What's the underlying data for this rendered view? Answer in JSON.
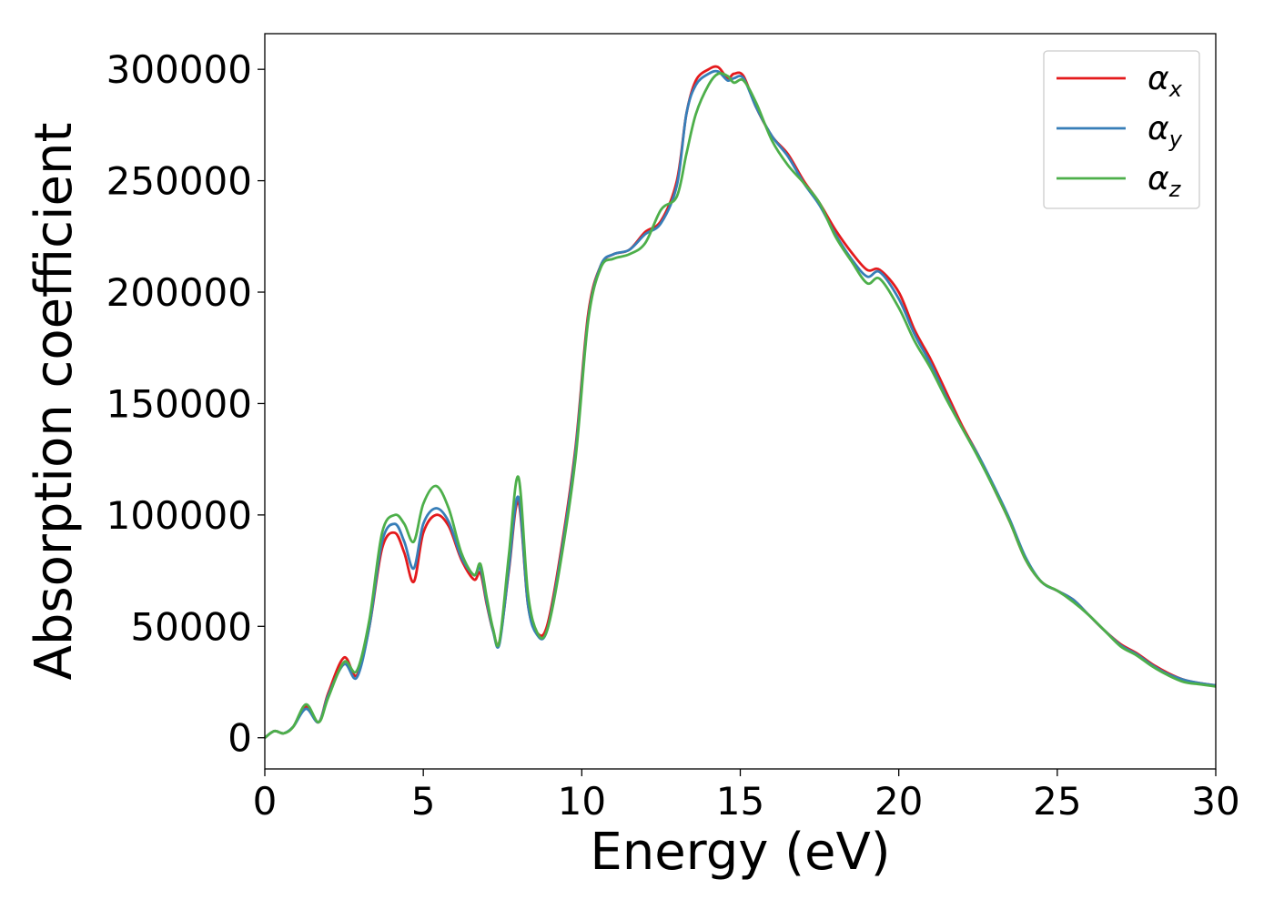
{
  "chart_data": {
    "type": "line",
    "xlabel": "Energy (eV)",
    "ylabel": "Absorption coefficient",
    "xlim": [
      0,
      30
    ],
    "ylim": [
      -14000,
      316000
    ],
    "xticks": [
      0,
      5,
      10,
      15,
      20,
      25,
      30
    ],
    "yticks": [
      0,
      50000,
      100000,
      150000,
      200000,
      250000,
      300000
    ],
    "grid": false,
    "legend_position": "top-right",
    "series": [
      {
        "name": "α_x",
        "label_base": "α",
        "label_sub": "x",
        "color": "#e41a1c",
        "x": [
          0,
          0.3,
          0.6,
          0.9,
          1.3,
          1.7,
          2.0,
          2.5,
          2.9,
          3.3,
          3.7,
          4.1,
          4.4,
          4.7,
          5.0,
          5.4,
          5.8,
          6.2,
          6.6,
          6.8,
          7.0,
          7.2,
          7.4,
          7.7,
          8.0,
          8.3,
          8.6,
          8.9,
          9.3,
          9.8,
          10.2,
          10.6,
          11.0,
          11.5,
          12.0,
          12.5,
          13.0,
          13.3,
          13.6,
          14.0,
          14.3,
          14.6,
          14.8,
          15.1,
          15.5,
          16.0,
          16.5,
          17.0,
          17.5,
          18.0,
          18.5,
          19.0,
          19.4,
          20.0,
          20.5,
          21.0,
          21.5,
          22.0,
          22.5,
          23.0,
          23.5,
          24.0,
          24.5,
          25.0,
          25.5,
          26.0,
          26.5,
          27.0,
          27.5,
          28.0,
          28.5,
          29.0,
          29.5,
          30.0
        ],
        "y": [
          0,
          3000,
          2000,
          5000,
          14000,
          7000,
          20000,
          36000,
          28000,
          50000,
          85000,
          92000,
          83000,
          70000,
          92000,
          100000,
          95000,
          80000,
          71000,
          74000,
          60000,
          48000,
          43000,
          75000,
          106000,
          60000,
          47000,
          50000,
          80000,
          130000,
          190000,
          212000,
          217000,
          219000,
          227000,
          232000,
          250000,
          280000,
          295000,
          300000,
          301000,
          296000,
          298000,
          297000,
          283000,
          270000,
          262000,
          250000,
          240000,
          228000,
          218000,
          210000,
          210000,
          200000,
          183000,
          170000,
          155000,
          140000,
          127000,
          112000,
          97000,
          80000,
          70000,
          66000,
          62000,
          55000,
          48000,
          42000,
          38000,
          33000,
          29000,
          26000,
          24500,
          23500
        ]
      },
      {
        "name": "α_y",
        "label_base": "α",
        "label_sub": "y",
        "color": "#377eb8",
        "x": [
          0,
          0.3,
          0.6,
          0.9,
          1.3,
          1.7,
          2.0,
          2.5,
          2.9,
          3.3,
          3.7,
          4.1,
          4.4,
          4.7,
          5.0,
          5.4,
          5.8,
          6.2,
          6.6,
          6.8,
          7.0,
          7.2,
          7.4,
          7.7,
          8.0,
          8.3,
          8.6,
          8.9,
          9.3,
          9.8,
          10.2,
          10.6,
          11.0,
          11.5,
          12.0,
          12.5,
          13.0,
          13.3,
          13.6,
          14.0,
          14.3,
          14.6,
          14.8,
          15.1,
          15.5,
          16.0,
          16.5,
          17.0,
          17.5,
          18.0,
          18.5,
          19.0,
          19.4,
          20.0,
          20.5,
          21.0,
          21.5,
          22.0,
          22.5,
          23.0,
          23.5,
          24.0,
          24.5,
          25.0,
          25.5,
          26.0,
          26.5,
          27.0,
          27.5,
          28.0,
          28.5,
          29.0,
          29.5,
          30.0
        ],
        "y": [
          0,
          3000,
          2000,
          5000,
          13000,
          7000,
          19000,
          33000,
          27000,
          50000,
          88000,
          96000,
          88000,
          76000,
          96000,
          103000,
          97000,
          81000,
          73000,
          76000,
          61000,
          48000,
          42000,
          76000,
          108000,
          60000,
          46000,
          48000,
          78000,
          128000,
          188000,
          212000,
          217000,
          219000,
          226000,
          231000,
          248000,
          280000,
          293000,
          298000,
          299000,
          295000,
          296000,
          296000,
          283000,
          270000,
          261000,
          249000,
          239000,
          226000,
          215000,
          207000,
          209000,
          197000,
          181000,
          168000,
          153000,
          139000,
          127000,
          113000,
          98000,
          81000,
          70000,
          66000,
          62000,
          55000,
          48000,
          41500,
          37500,
          32500,
          28500,
          26000,
          24500,
          23500
        ]
      },
      {
        "name": "α_z",
        "label_base": "α",
        "label_sub": "z",
        "color": "#4daf4a",
        "x": [
          0,
          0.3,
          0.6,
          0.9,
          1.3,
          1.7,
          2.0,
          2.5,
          2.9,
          3.3,
          3.7,
          4.1,
          4.4,
          4.7,
          5.0,
          5.4,
          5.8,
          6.2,
          6.6,
          6.8,
          7.0,
          7.2,
          7.4,
          7.7,
          8.0,
          8.3,
          8.6,
          8.9,
          9.3,
          9.8,
          10.2,
          10.6,
          11.0,
          11.5,
          12.0,
          12.5,
          13.0,
          13.3,
          13.6,
          14.0,
          14.3,
          14.6,
          14.8,
          15.1,
          15.5,
          16.0,
          16.5,
          17.0,
          17.5,
          18.0,
          18.5,
          19.0,
          19.4,
          20.0,
          20.5,
          21.0,
          21.5,
          22.0,
          22.5,
          23.0,
          23.5,
          24.0,
          24.5,
          25.0,
          25.5,
          26.0,
          26.5,
          27.0,
          27.5,
          28.0,
          28.5,
          29.0,
          29.5,
          30.0
        ],
        "y": [
          0,
          3000,
          2000,
          5000,
          15000,
          7000,
          18000,
          34000,
          30000,
          53000,
          92000,
          100000,
          96000,
          88000,
          105000,
          113000,
          103000,
          83000,
          73000,
          78000,
          63000,
          49000,
          43000,
          82000,
          117000,
          65000,
          47000,
          48000,
          76000,
          125000,
          187000,
          211000,
          215000,
          217000,
          222000,
          237000,
          243000,
          262000,
          280000,
          293000,
          298000,
          297000,
          294000,
          295000,
          285000,
          268000,
          257000,
          249000,
          240000,
          225000,
          214000,
          204000,
          206000,
          193000,
          178000,
          166000,
          152000,
          139000,
          126000,
          112000,
          97000,
          80000,
          70000,
          66000,
          61000,
          55000,
          48000,
          41000,
          37000,
          32000,
          28000,
          25000,
          24000,
          23000
        ]
      }
    ]
  }
}
